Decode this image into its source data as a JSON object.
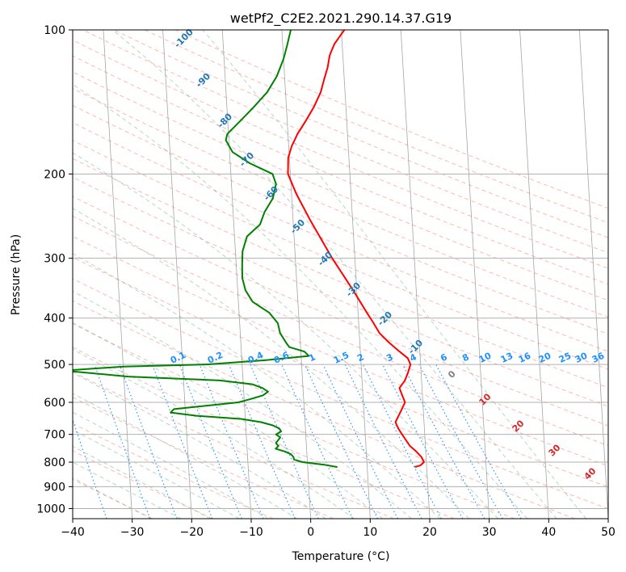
{
  "chart_data": {
    "type": "line",
    "title": "wetPf2_C2E2.2021.290.14.37.G19",
    "xlabel": "Temperature (°C)",
    "ylabel": "Pressure (hPa)",
    "xlim": [
      -40,
      50
    ],
    "ylim": [
      1050,
      100
    ],
    "y_scale": "log",
    "x_ticks": [
      -40,
      -30,
      -20,
      -10,
      0,
      10,
      20,
      30,
      40,
      50
    ],
    "y_ticks": [
      100,
      200,
      300,
      400,
      500,
      600,
      700,
      800,
      900,
      1000
    ],
    "grid": true,
    "isotherm_labels": [
      "-100",
      "-90",
      "-80",
      "-70",
      "-60",
      "-50",
      "-40",
      "-30",
      "-20",
      "-10",
      "0",
      "10",
      "20",
      "30",
      "40"
    ],
    "mixing_ratio_labels": [
      "0.1",
      "0.2",
      "0.4",
      "0.6",
      "1",
      "1.5",
      "2",
      "3",
      "4",
      "6",
      "8",
      "10",
      "13",
      "16",
      "20",
      "25",
      "30",
      "36"
    ],
    "series": [
      {
        "role": "temperature",
        "color": "#ff0000",
        "points": [
          [
            819,
            18.0
          ],
          [
            812,
            19.0
          ],
          [
            800,
            19.6
          ],
          [
            780,
            19.2
          ],
          [
            760,
            18.4
          ],
          [
            740,
            17.4
          ],
          [
            720,
            16.8
          ],
          [
            700,
            16.2
          ],
          [
            680,
            15.6
          ],
          [
            660,
            15.2
          ],
          [
            640,
            15.8
          ],
          [
            620,
            16.4
          ],
          [
            600,
            17.0
          ],
          [
            580,
            16.6
          ],
          [
            560,
            16.2
          ],
          [
            540,
            17.2
          ],
          [
            520,
            17.8
          ],
          [
            500,
            18.3
          ],
          [
            485,
            17.9
          ],
          [
            470,
            16.6
          ],
          [
            450,
            14.9
          ],
          [
            430,
            13.4
          ],
          [
            410,
            12.5
          ],
          [
            390,
            11.5
          ],
          [
            350,
            9.4
          ],
          [
            300,
            6.2
          ],
          [
            250,
            2.9
          ],
          [
            220,
            0.8
          ],
          [
            200,
            -0.4
          ],
          [
            185,
            -0.2
          ],
          [
            175,
            0.5
          ],
          [
            165,
            1.6
          ],
          [
            155,
            3.1
          ],
          [
            145,
            4.6
          ],
          [
            135,
            5.9
          ],
          [
            127,
            6.6
          ],
          [
            120,
            7.3
          ],
          [
            113,
            7.8
          ],
          [
            107,
            8.7
          ],
          [
            100,
            10.5
          ]
        ]
      },
      {
        "role": "dewpoint",
        "color": "#008000",
        "points": [
          [
            819,
            5.0
          ],
          [
            810,
            2.8
          ],
          [
            800,
            -0.8
          ],
          [
            790,
            -2.2
          ],
          [
            780,
            -2.3
          ],
          [
            770,
            -2.7
          ],
          [
            760,
            -3.7
          ],
          [
            750,
            -5.2
          ],
          [
            740,
            -4.7
          ],
          [
            730,
            -5.1
          ],
          [
            710,
            -4.3
          ],
          [
            700,
            -5.0
          ],
          [
            690,
            -4.1
          ],
          [
            680,
            -4.4
          ],
          [
            670,
            -5.5
          ],
          [
            660,
            -7.4
          ],
          [
            650,
            -10.6
          ],
          [
            640,
            -18.2
          ],
          [
            630,
            -22.5
          ],
          [
            620,
            -21.9
          ],
          [
            610,
            -16.5
          ],
          [
            600,
            -11.0
          ],
          [
            590,
            -8.8
          ],
          [
            580,
            -6.8
          ],
          [
            570,
            -5.9
          ],
          [
            560,
            -6.8
          ],
          [
            550,
            -8.5
          ],
          [
            540,
            -13.9
          ],
          [
            530,
            -29.3
          ],
          [
            515,
            -40.0
          ],
          [
            505,
            -29.9
          ],
          [
            500,
            -16.0
          ],
          [
            490,
            -6.1
          ],
          [
            480,
            1.3
          ],
          [
            470,
            0.6
          ],
          [
            460,
            -1.9
          ],
          [
            450,
            -2.4
          ],
          [
            430,
            -3.3
          ],
          [
            410,
            -3.6
          ],
          [
            390,
            -4.9
          ],
          [
            370,
            -7.6
          ],
          [
            350,
            -8.7
          ],
          [
            330,
            -9.1
          ],
          [
            310,
            -9.0
          ],
          [
            290,
            -8.8
          ],
          [
            270,
            -7.9
          ],
          [
            255,
            -5.6
          ],
          [
            240,
            -4.7
          ],
          [
            225,
            -3.2
          ],
          [
            210,
            -2.5
          ],
          [
            200,
            -3.0
          ],
          [
            190,
            -6.7
          ],
          [
            180,
            -9.5
          ],
          [
            170,
            -10.5
          ],
          [
            165,
            -10.2
          ],
          [
            155,
            -7.9
          ],
          [
            145,
            -5.5
          ],
          [
            135,
            -3.1
          ],
          [
            125,
            -1.3
          ],
          [
            115,
            0.0
          ],
          [
            108,
            0.7
          ],
          [
            100,
            1.5
          ]
        ]
      }
    ],
    "background_lines": {
      "isotherm_color": "#808080",
      "dry_adiabat_color": "#fa8072",
      "moist_adiabat_color": "#2e8b57",
      "mixing_ratio_color": "#1e90ff",
      "isotherm_label_color": "#1f77b4",
      "moist_label_color": "#d62728"
    }
  }
}
